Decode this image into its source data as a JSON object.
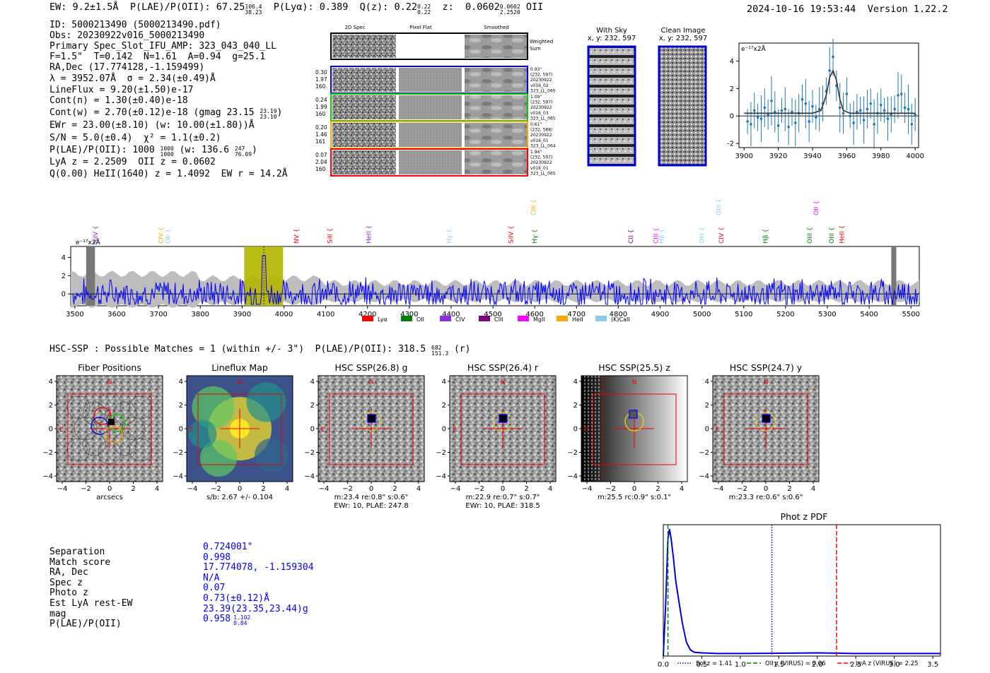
{
  "header": {
    "ew": "EW: 9.2±1.5Å",
    "plae": "P(LAE)/P(OII): 67.25",
    "plae_hi": "106.4",
    "plae_lo": "38.23",
    "plya": "P(Lyα): 0.389",
    "qz": "Q(z): 0.22",
    "qz_hi": "0.22",
    "qz_lo": "0.22",
    "z": "z:  0.0602",
    "z_hi": "0.0602",
    "z_lo": "2.2520",
    "z_line": "OII",
    "timestamp": "2024-10-16 19:53:44",
    "version": "Version 1.22.2"
  },
  "info": {
    "id": "ID: 5000213490 (5000213490.pdf)",
    "obs": "Obs: 20230922v016_5000213490",
    "primary": "Primary Spec_Slot_IFU_AMP: 323_043_040_LL",
    "fiber": "F=1.5\"  T=0.142  N=1.61  A=0.94  g=25.1",
    "radec": "RA,Dec (17.774128,-1.159499)",
    "lambda": "λ = 3952.07Å  σ = 2.34(±0.49)Å",
    "lineflux": "LineFlux = 9.20(±1.50)e-17",
    "contn": "Cont(n) = 1.30(±0.40)e-18",
    "contw": "Cont(w) = 2.70(±0.12)e-18 (gmag 23.15",
    "contw_hi": "23.19",
    "contw_lo": "23.10",
    "ewr": "EWr = 23.00(±8.10) (w: 10.00(±1.80))Å",
    "sn": "S/N = 5.0(±0.4)  χ² = 1.1(±0.2)",
    "plae": "P(LAE)/P(OII): 1000",
    "plae_hi": "1000",
    "plae_lo": "1000",
    "plae_w": "(w: 136.6",
    "plae_w_hi": "247",
    "plae_w_lo": "76.09",
    "lya": "LyA z = 2.2509  OII z = 0.0602",
    "heii": "Q(0.00) HeII(1640) z = 1.4092  EW r = 14.2Å"
  },
  "cutouts": {
    "col_labels": [
      "2D Spec",
      "Pixel Flat",
      "Smoothed"
    ],
    "weighted": "Weighted\nSum",
    "rows": [
      {
        "left": [
          "0.30",
          "1.97",
          "160"
        ],
        "right": [
          "0.93\"",
          "(232, 597)",
          "20230922",
          "v016_02",
          "323_LL_065"
        ],
        "color": "#0000ff"
      },
      {
        "left": [
          "0.24",
          "1.99",
          "160"
        ],
        "right": [
          "1.09\"",
          "(232, 597)",
          "20230922",
          "v016_03",
          "323_LL_065"
        ],
        "color": "#00cc00"
      },
      {
        "left": [
          "0.20",
          "1.46",
          "161"
        ],
        "right": [
          "0.61\"",
          "(232, 588)",
          "20230922",
          "v016_01",
          "323_LL_064"
        ],
        "color": "#ffa500"
      },
      {
        "left": [
          "0.07",
          "2.04",
          "160"
        ],
        "right": [
          "1.94\"",
          "(232, 597)",
          "20230922",
          "v016_01",
          "323_LL_065"
        ],
        "color": "#ff0000"
      }
    ],
    "sky_title": "With Sky",
    "sky_coords": "x, y: 232, 597",
    "clean_title": "Clean Image",
    "clean_coords": "x, y: 232, 597"
  },
  "zoom_plot": {
    "ylabel": "e⁻¹⁷x2Å",
    "xticks": [
      "3900",
      "3920",
      "3940",
      "3960",
      "3980",
      "4000"
    ],
    "yticks": [
      "4",
      "2",
      "0",
      "-2"
    ]
  },
  "full_spectrum": {
    "ylabel": "e⁻¹⁷x2Å",
    "xticks": [
      "3500",
      "3600",
      "3700",
      "3800",
      "3900",
      "4000",
      "4100",
      "4200",
      "4300",
      "4400",
      "4500",
      "4600",
      "4700",
      "4800",
      "4900",
      "5000",
      "5100",
      "5200",
      "5300",
      "5400",
      "5500"
    ],
    "yticks": [
      "4",
      "2",
      "0"
    ],
    "lines": [
      {
        "label": "SiIV",
        "wave": 3549,
        "color": "#8a2be2",
        "row": 1
      },
      {
        "label": "CIV",
        "wave": 3706,
        "color": "#ffa500",
        "row": 1
      },
      {
        "label": "OII",
        "wave": 3723,
        "color": "#87ceeb",
        "row": 1
      },
      {
        "label": "NV",
        "wave": 4030,
        "color": "#ff0000",
        "row": 1
      },
      {
        "label": "SiII",
        "wave": 4110,
        "color": "#ff0000",
        "row": 1
      },
      {
        "label": "HeII",
        "wave": 4203,
        "color": "#8a2be2",
        "row": 1
      },
      {
        "label": "Hγ",
        "wave": 4395,
        "color": "#87ceeb",
        "row": 1
      },
      {
        "label": "SiIV",
        "wave": 4543,
        "color": "#ff0000",
        "row": 1
      },
      {
        "label": "CIII",
        "wave": 4597,
        "color": "#ffa500",
        "row": 0
      },
      {
        "label": "Hγ",
        "wave": 4600,
        "color": "#008000",
        "row": 1
      },
      {
        "label": "CII",
        "wave": 4830,
        "color": "#800080",
        "row": 1
      },
      {
        "label": "CIII",
        "wave": 4890,
        "color": "#ff00ff",
        "row": 1
      },
      {
        "label": "Hβ",
        "wave": 4903,
        "color": "#87ceeb",
        "row": 1
      },
      {
        "label": "OIII",
        "wave": 5000,
        "color": "#87ceeb",
        "row": 1
      },
      {
        "label": "OIII",
        "wave": 5040,
        "color": "#87ceeb",
        "row": 0
      },
      {
        "label": "CIV",
        "wave": 5046,
        "color": "#ff0000",
        "row": 1
      },
      {
        "label": "Hβ",
        "wave": 5152,
        "color": "#008000",
        "row": 1
      },
      {
        "label": "OII",
        "wave": 5273,
        "color": "#ff00ff",
        "row": 0
      },
      {
        "label": "OIII",
        "wave": 5258,
        "color": "#008000",
        "row": 1
      },
      {
        "label": "OIII",
        "wave": 5310,
        "color": "#008000",
        "row": 1
      },
      {
        "label": "HeII",
        "wave": 5335,
        "color": "#ff0000",
        "row": 1
      }
    ],
    "legend": [
      {
        "label": "Lyα",
        "color": "#ff0000"
      },
      {
        "label": "OII",
        "color": "#008000"
      },
      {
        "label": "CIV",
        "color": "#8a2be2"
      },
      {
        "label": "CIII",
        "color": "#800080"
      },
      {
        "label": "MgII",
        "color": "#ff00ff"
      },
      {
        "label": "HeII",
        "color": "#ffa500"
      },
      {
        "label": "(K)CaII",
        "color": "#87ceeb"
      }
    ]
  },
  "hsc": {
    "heading": "HSC-SSP : Possible Matches = 1 (within +/- 3\")  P(LAE)/P(OII): 318.5",
    "heading_hi": "682",
    "heading_lo": "151.3",
    "heading_band": "(r)",
    "panels": [
      {
        "title": "Fiber Positions",
        "cap1": "arcsecs",
        "cap2": ""
      },
      {
        "title": "Lineflux Map",
        "cap1": "s/b: 2.67 +/- 0.104",
        "cap2": ""
      },
      {
        "title": "HSC SSP(26.8) g",
        "cap1": "m:23.4  re:0.8\"  s:0.6\"",
        "cap2": "EWr: 10, PLAE: 247.8"
      },
      {
        "title": "HSC SSP(26.4) r",
        "cap1": "m:22.9  re:0.7\"  s:0.7\"",
        "cap2": "EWr: 10, PLAE: 318.5"
      },
      {
        "title": "HSC SSP(25.5) z",
        "cap1": "m:25.5 rc:0.9\"  s:0.1\"",
        "cap2": ""
      },
      {
        "title": "HSC SSP(24.7) y",
        "cap1": "m:23.3  re:0.6\"  s:0.6\"",
        "cap2": ""
      }
    ],
    "north": "N",
    "east": "E",
    "ticks": [
      "−4",
      "−2",
      "0",
      "2",
      "4"
    ],
    "yticks": [
      "4",
      "2",
      "0",
      "−2",
      "−4"
    ]
  },
  "match": {
    "labels": [
      "Separation",
      "Match score",
      "RA, Dec",
      "Spec z",
      "Photo z",
      "Est LyA rest-EW",
      "mag",
      "P(LAE)/P(OII)"
    ],
    "values": [
      "0.724001\"",
      "0.998",
      "17.774078, -1.159304",
      "N/A",
      "0.07",
      "0.73(±0.12)Å",
      "23.39(23.35,23.44)g",
      "0.958"
    ],
    "plae_hi": "1.102",
    "plae_lo": "0.84"
  },
  "chart_data": [
    {
      "type": "line",
      "title": "",
      "ylabel": "e-17 x2Å",
      "xlim": [
        3897,
        4002
      ],
      "ylim": [
        -2.3,
        5.3
      ],
      "series": [
        {
          "name": "data",
          "x": [
            3902,
            3904,
            3906,
            3908,
            3910,
            3912,
            3914,
            3916,
            3918,
            3920,
            3922,
            3924,
            3926,
            3928,
            3930,
            3932,
            3934,
            3936,
            3938,
            3940,
            3942,
            3944,
            3946,
            3948,
            3950,
            3952,
            3954,
            3956,
            3958,
            3960,
            3962,
            3964,
            3966,
            3968,
            3970,
            3972,
            3974,
            3976,
            3978,
            3980,
            3982,
            3984,
            3986,
            3988,
            3990,
            3992,
            3994,
            3996,
            3998,
            4000
          ],
          "values": [
            -0.4,
            -0.6,
            0.4,
            -0.1,
            -0.2,
            0.6,
            0.1,
            1.1,
            0.3,
            -0.7,
            0.4,
            0.5,
            -0.8,
            0.3,
            -0.5,
            0.2,
            1.2,
            0.9,
            -0.4,
            0.7,
            -0.1,
            0.5,
            0.9,
            1.8,
            3.3,
            4.3,
            2.2,
            0.6,
            0.2,
            1.6,
            0.0,
            -0.5,
            0.3,
            0.4,
            -0.3,
            0.5,
            0.9,
            -0.6,
            0.2,
            0.8,
            0.4,
            -0.2,
            0.1,
            0.5,
            1.5,
            1.6,
            0.6,
            0.5,
            -0.6,
            0.1
          ]
        },
        {
          "name": "fit",
          "x": [
            3900,
            3940,
            3945,
            3948,
            3950,
            3952,
            3954,
            3956,
            3958,
            3962,
            4000
          ],
          "values": [
            0.2,
            0.2,
            0.4,
            1.5,
            2.8,
            3.3,
            2.6,
            1.2,
            0.4,
            0.2,
            0.2
          ]
        }
      ]
    },
    {
      "type": "line",
      "title": "Phot z PDF",
      "xlim": [
        0,
        3.6
      ],
      "xticks": [
        "0.0",
        "0.5",
        "1.0",
        "1.5",
        "2.0",
        "2.5",
        "3.0",
        "3.5"
      ],
      "series": [
        {
          "name": "pdf",
          "x": [
            0.0,
            0.03,
            0.06,
            0.08,
            0.1,
            0.13,
            0.16,
            0.2,
            0.25,
            0.3,
            0.35,
            0.4,
            0.5,
            0.7,
            1.0,
            1.5,
            2.0,
            2.5,
            3.0,
            3.6
          ],
          "values": [
            0.0,
            0.4,
            0.92,
            1.0,
            0.93,
            0.78,
            0.6,
            0.44,
            0.25,
            0.11,
            0.05,
            0.03,
            0.025,
            0.02,
            0.02,
            0.022,
            0.025,
            0.02,
            0.02,
            0.02
          ]
        }
      ],
      "vlines": [
        {
          "label": "Sol z = 1.41",
          "value": 1.41,
          "color": "#0000ff",
          "style": "dotted"
        },
        {
          "label": "OII z (VIRUS) = 0.06",
          "value": 0.06,
          "color": "#008000",
          "style": "dashed"
        },
        {
          "label": "LyA z (VIRUS) = 2.25",
          "value": 2.25,
          "color": "#ff0000",
          "style": "dashed"
        }
      ]
    }
  ]
}
